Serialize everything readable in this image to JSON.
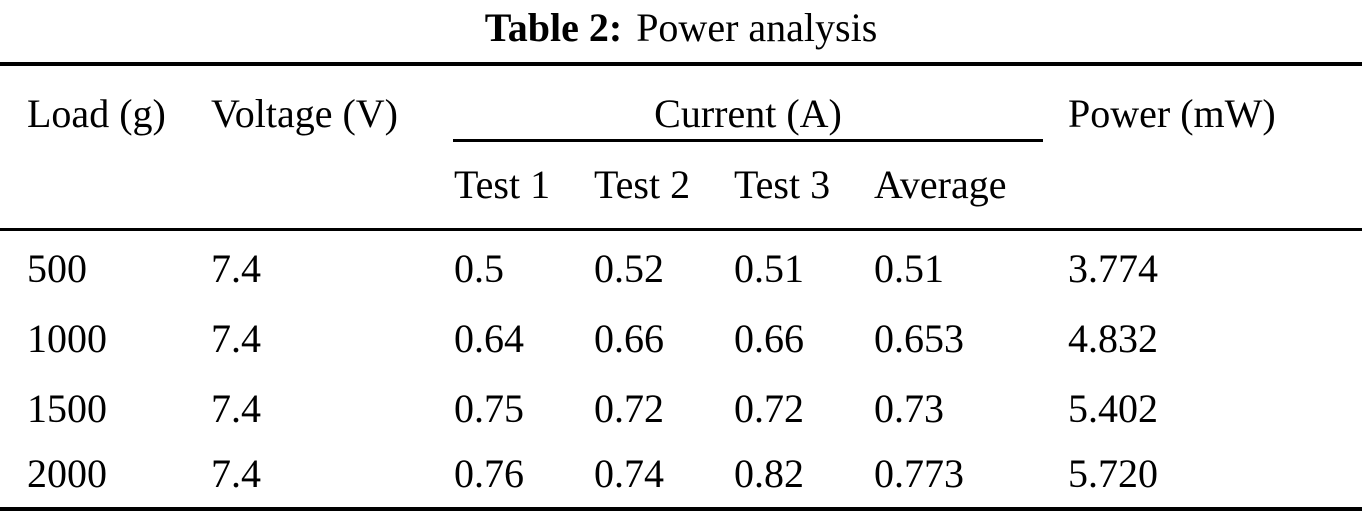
{
  "title": {
    "label": "Table 2:",
    "caption": "Power analysis"
  },
  "colors": {
    "text": "#000000",
    "background": "#ffffff",
    "rule": "#000000"
  },
  "chart_data": {
    "type": "table",
    "title": "Table 2: Power analysis",
    "column_groups": [
      {
        "label": "Current (A)",
        "spans": [
          "Test 1",
          "Test 2",
          "Test 3",
          "Average"
        ]
      }
    ],
    "columns": [
      "Load (g)",
      "Voltage (V)",
      "Test 1",
      "Test 2",
      "Test 3",
      "Average",
      "Power (mW)"
    ],
    "rows": [
      [
        "500",
        "7.4",
        "0.5",
        "0.52",
        "0.51",
        "0.51",
        "3.774"
      ],
      [
        "1000",
        "7.4",
        "0.64",
        "0.66",
        "0.66",
        "0.653",
        "4.832"
      ],
      [
        "1500",
        "7.4",
        "0.75",
        "0.72",
        "0.72",
        "0.73",
        "5.402"
      ],
      [
        "2000",
        "7.4",
        "0.76",
        "0.74",
        "0.82",
        "0.773",
        "5.720"
      ]
    ]
  },
  "table": {
    "headers": {
      "load": "Load (g)",
      "voltage": "Voltage (V)",
      "current_group": "Current (A)",
      "power": "Power (mW)",
      "sub": [
        "Test 1",
        "Test 2",
        "Test 3",
        "Average"
      ]
    },
    "rows": [
      {
        "load": "500",
        "voltage": "7.4",
        "test1": "0.5",
        "test2": "0.52",
        "test3": "0.51",
        "average": "0.51",
        "power": "3.774"
      },
      {
        "load": "1000",
        "voltage": "7.4",
        "test1": "0.64",
        "test2": "0.66",
        "test3": "0.66",
        "average": "0.653",
        "power": "4.832"
      },
      {
        "load": "1500",
        "voltage": "7.4",
        "test1": "0.75",
        "test2": "0.72",
        "test3": "0.72",
        "average": "0.73",
        "power": "5.402"
      },
      {
        "load": "2000",
        "voltage": "7.4",
        "test1": "0.76",
        "test2": "0.74",
        "test3": "0.82",
        "average": "0.773",
        "power": "5.720"
      }
    ]
  }
}
